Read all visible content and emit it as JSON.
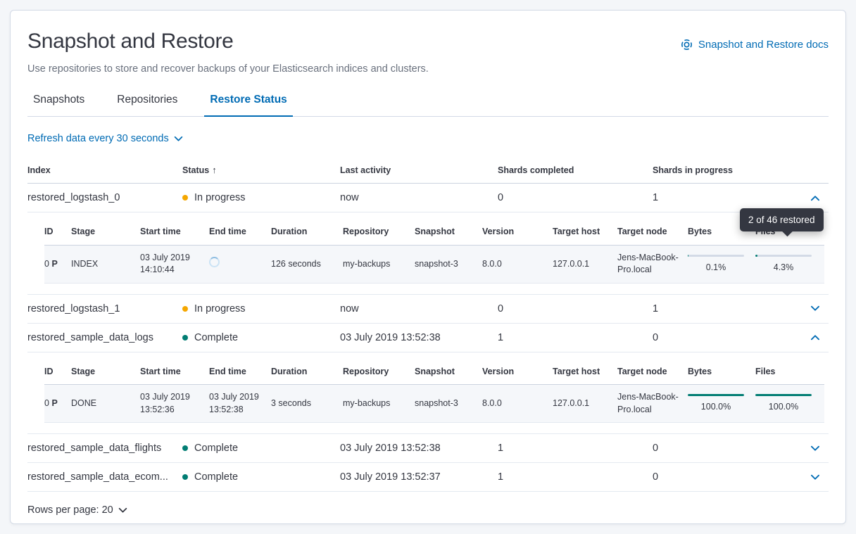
{
  "colors": {
    "accent_blue": "#006BB4",
    "status_in_progress": "#F5A700",
    "status_complete": "#017D73",
    "progress_fill": "#017D73",
    "progress_track": "#D3DAE6",
    "tooltip_bg": "#343741"
  },
  "icons": {
    "docs": "life-ring-icon",
    "sort": "arrow-up-icon",
    "refresh_caret": "chevron-down-icon",
    "row_collapsed": "chevron-down-icon",
    "row_expanded": "chevron-up-icon",
    "end_time_loading": "loading-spinner-icon",
    "rows_per_page_caret": "chevron-down-icon"
  },
  "header": {
    "title": "Snapshot and Restore",
    "subtitle": "Use repositories to store and recover backups of your Elasticsearch indices and clusters.",
    "docs_link_label": "Snapshot and Restore docs"
  },
  "tabs": [
    {
      "label": "Snapshots",
      "active": false
    },
    {
      "label": "Repositories",
      "active": false
    },
    {
      "label": "Restore Status",
      "active": true
    }
  ],
  "toolbar": {
    "refresh_label": "Refresh data every 30 seconds"
  },
  "table": {
    "columns": {
      "index": "Index",
      "status": "Status",
      "sort_arrow": "↑",
      "last_activity": "Last activity",
      "shards_completed": "Shards completed",
      "shards_in_progress": "Shards in progress"
    },
    "rows": [
      {
        "index": "restored_logstash_0",
        "status": "In progress",
        "status_color": "#F5A700",
        "last_activity": "now",
        "shards_completed": "0",
        "shards_in_progress": "1",
        "expanded": true
      },
      {
        "index": "restored_logstash_1",
        "status": "In progress",
        "status_color": "#F5A700",
        "last_activity": "now",
        "shards_completed": "0",
        "shards_in_progress": "1",
        "expanded": false
      },
      {
        "index": "restored_sample_data_logs",
        "status": "Complete",
        "status_color": "#017D73",
        "last_activity": "03 July 2019 13:52:38",
        "shards_completed": "1",
        "shards_in_progress": "0",
        "expanded": true
      },
      {
        "index": "restored_sample_data_flights",
        "status": "Complete",
        "status_color": "#017D73",
        "last_activity": "03 July 2019 13:52:38",
        "shards_completed": "1",
        "shards_in_progress": "0",
        "expanded": false
      },
      {
        "index": "restored_sample_data_ecom...",
        "status": "Complete",
        "status_color": "#017D73",
        "last_activity": "03 July 2019 13:52:37",
        "shards_completed": "1",
        "shards_in_progress": "0",
        "expanded": false
      }
    ]
  },
  "detail_columns": {
    "id": "ID",
    "stage": "Stage",
    "start_time": "Start time",
    "end_time": "End time",
    "duration": "Duration",
    "repository": "Repository",
    "snapshot": "Snapshot",
    "version": "Version",
    "target_host": "Target host",
    "target_node": "Target node",
    "bytes": "Bytes",
    "files": "Files"
  },
  "details": [
    {
      "id": "0",
      "id_badge": "P",
      "stage": "INDEX",
      "start_time": "03 July 2019 14:10:44",
      "end_time": "",
      "duration": "126 seconds",
      "repository": "my-backups",
      "snapshot": "snapshot-3",
      "version": "8.0.0",
      "target_host": "127.0.0.1",
      "target_node": "Jens-MacBook-Pro.local",
      "bytes_label": "0.1%",
      "bytes_percent": 0.1,
      "files_label": "4.3%",
      "files_percent": 4.3
    },
    {
      "id": "0",
      "id_badge": "P",
      "stage": "DONE",
      "start_time": "03 July 2019 13:52:36",
      "end_time": "03 July 2019 13:52:38",
      "duration": "3 seconds",
      "repository": "my-backups",
      "snapshot": "snapshot-3",
      "version": "8.0.0",
      "target_host": "127.0.0.1",
      "target_node": "Jens-MacBook-Pro.local",
      "bytes_label": "100.0%",
      "bytes_percent": 100,
      "files_label": "100.0%",
      "files_percent": 100
    }
  ],
  "tooltip": {
    "text": "2 of 46 restored"
  },
  "pagination": {
    "rows_per_page_label": "Rows per page: 20"
  }
}
